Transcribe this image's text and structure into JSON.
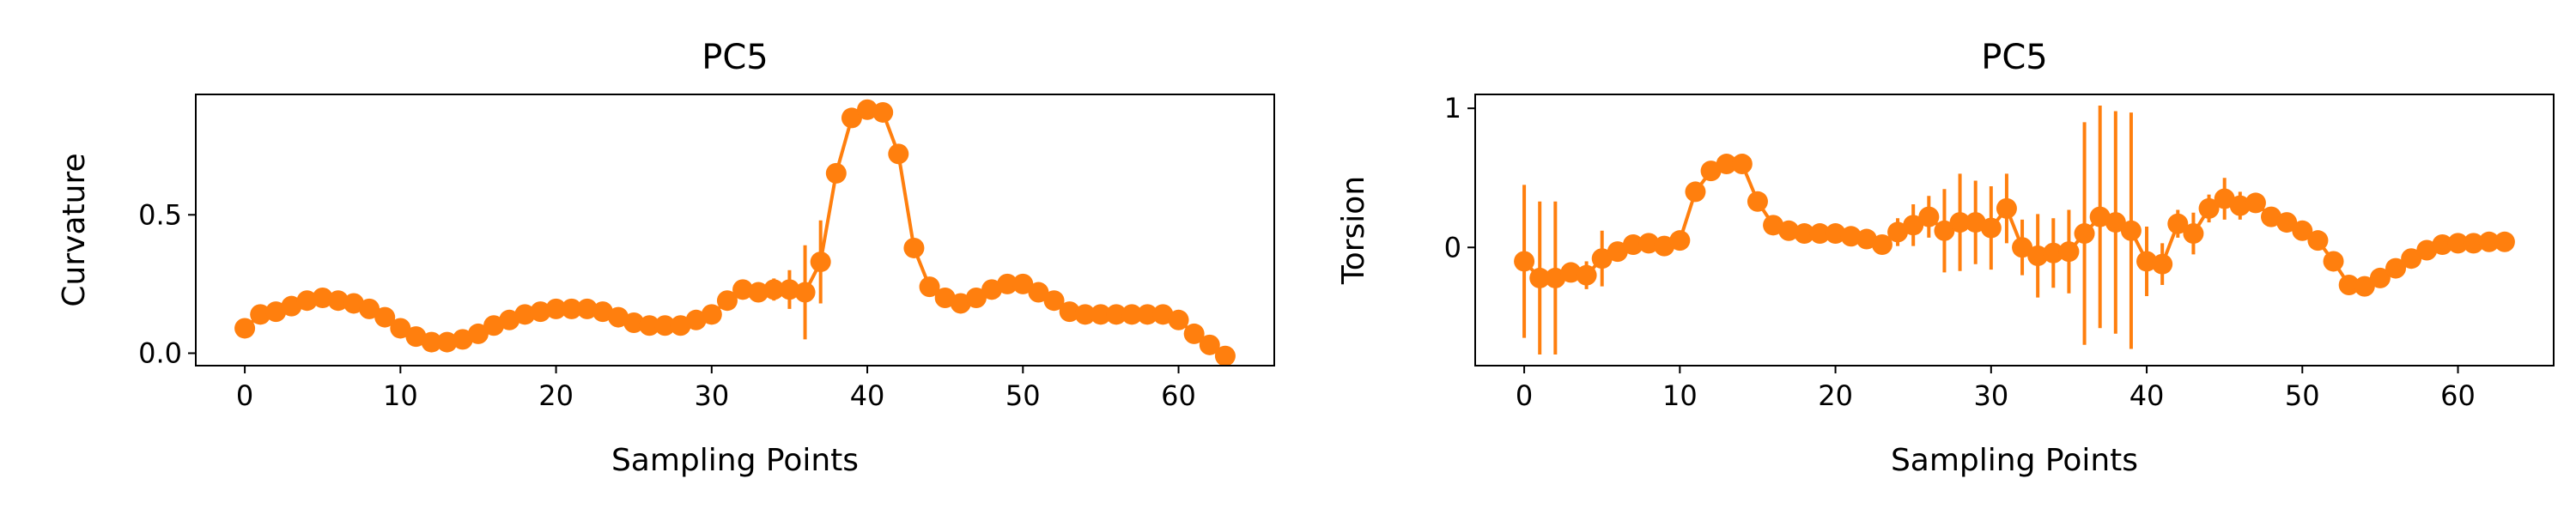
{
  "chart_data": [
    {
      "type": "line",
      "title": "PC5",
      "xlabel": "Sampling Points",
      "ylabel": "Curvature",
      "xlim": [
        -3.15,
        66.15
      ],
      "ylim": [
        -0.045,
        0.935
      ],
      "xticks": [
        0,
        10,
        20,
        30,
        40,
        50,
        60
      ],
      "xtick_labels": [
        "0",
        "10",
        "20",
        "30",
        "40",
        "50",
        "60"
      ],
      "yticks": [
        0.0,
        0.5
      ],
      "ytick_labels": [
        "0.0",
        "0.5"
      ],
      "grid": false,
      "legend": "none",
      "series": [
        {
          "color": "#ff7f0e",
          "marker": "circle",
          "x": [
            0,
            1,
            2,
            3,
            4,
            5,
            6,
            7,
            8,
            9,
            10,
            11,
            12,
            13,
            14,
            15,
            16,
            17,
            18,
            19,
            20,
            21,
            22,
            23,
            24,
            25,
            26,
            27,
            28,
            29,
            30,
            31,
            32,
            33,
            34,
            35,
            36,
            37,
            38,
            39,
            40,
            41,
            42,
            43,
            44,
            45,
            46,
            47,
            48,
            49,
            50,
            51,
            52,
            53,
            54,
            55,
            56,
            57,
            58,
            59,
            60,
            61,
            62,
            63
          ],
          "y": [
            0.09,
            0.14,
            0.15,
            0.17,
            0.19,
            0.2,
            0.19,
            0.18,
            0.16,
            0.13,
            0.09,
            0.06,
            0.04,
            0.04,
            0.05,
            0.07,
            0.1,
            0.12,
            0.14,
            0.15,
            0.16,
            0.16,
            0.16,
            0.15,
            0.13,
            0.11,
            0.1,
            0.1,
            0.1,
            0.12,
            0.14,
            0.19,
            0.23,
            0.22,
            0.23,
            0.23,
            0.22,
            0.33,
            0.65,
            0.85,
            0.88,
            0.87,
            0.72,
            0.38,
            0.24,
            0.2,
            0.18,
            0.2,
            0.23,
            0.25,
            0.25,
            0.22,
            0.19,
            0.15,
            0.14,
            0.14,
            0.14,
            0.14,
            0.14,
            0.14,
            0.12,
            0.07,
            0.03,
            -0.01
          ],
          "yerr": [
            0,
            0,
            0,
            0,
            0,
            0,
            0,
            0,
            0,
            0,
            0,
            0,
            0,
            0,
            0,
            0,
            0,
            0,
            0,
            0,
            0,
            0,
            0,
            0,
            0,
            0,
            0,
            0,
            0,
            0,
            0,
            0,
            0,
            0,
            0.04,
            0.07,
            0.17,
            0.15,
            0.03,
            0,
            0,
            0,
            0,
            0,
            0,
            0,
            0,
            0,
            0,
            0,
            0,
            0,
            0,
            0,
            0,
            0,
            0,
            0,
            0,
            0,
            0,
            0,
            0,
            0
          ]
        }
      ]
    },
    {
      "type": "line",
      "title": "PC5",
      "xlabel": "Sampling Points",
      "ylabel": "Torsion",
      "xlim": [
        -3.15,
        66.15
      ],
      "ylim": [
        -0.85,
        1.1
      ],
      "xticks": [
        0,
        10,
        20,
        30,
        40,
        50,
        60
      ],
      "xtick_labels": [
        "0",
        "10",
        "20",
        "30",
        "40",
        "50",
        "60"
      ],
      "yticks": [
        0,
        1
      ],
      "ytick_labels": [
        "0",
        "1"
      ],
      "grid": false,
      "legend": "none",
      "series": [
        {
          "color": "#ff7f0e",
          "marker": "circle",
          "x": [
            0,
            1,
            2,
            3,
            4,
            5,
            6,
            7,
            8,
            9,
            10,
            11,
            12,
            13,
            14,
            15,
            16,
            17,
            18,
            19,
            20,
            21,
            22,
            23,
            24,
            25,
            26,
            27,
            28,
            29,
            30,
            31,
            32,
            33,
            34,
            35,
            36,
            37,
            38,
            39,
            40,
            41,
            42,
            43,
            44,
            45,
            46,
            47,
            48,
            49,
            50,
            51,
            52,
            53,
            54,
            55,
            56,
            57,
            58,
            59,
            60,
            61,
            62,
            63
          ],
          "y": [
            -0.1,
            -0.22,
            -0.22,
            -0.18,
            -0.2,
            -0.08,
            -0.03,
            0.02,
            0.03,
            0.01,
            0.05,
            0.4,
            0.55,
            0.6,
            0.6,
            0.33,
            0.16,
            0.12,
            0.1,
            0.1,
            0.1,
            0.08,
            0.06,
            0.02,
            0.11,
            0.16,
            0.22,
            0.12,
            0.18,
            0.18,
            0.14,
            0.28,
            0.0,
            -0.06,
            -0.04,
            -0.03,
            0.1,
            0.22,
            0.18,
            0.12,
            -0.1,
            -0.12,
            0.17,
            0.1,
            0.28,
            0.35,
            0.3,
            0.32,
            0.22,
            0.18,
            0.12,
            0.05,
            -0.1,
            -0.27,
            -0.28,
            -0.22,
            -0.15,
            -0.08,
            -0.02,
            0.02,
            0.03,
            0.03,
            0.04,
            0.04
          ],
          "yerr": [
            0.55,
            0.55,
            0.55,
            0.07,
            0.1,
            0.2,
            0.05,
            0.05,
            0.05,
            0.05,
            0.05,
            0.05,
            0.05,
            0.05,
            0.05,
            0.05,
            0,
            0,
            0,
            0,
            0,
            0,
            0,
            0,
            0.1,
            0.15,
            0.15,
            0.3,
            0.35,
            0.3,
            0.3,
            0.25,
            0.2,
            0.3,
            0.25,
            0.3,
            0.8,
            0.8,
            0.8,
            0.85,
            0.25,
            0.15,
            0.1,
            0.15,
            0.1,
            0.15,
            0.1,
            0.05,
            0,
            0,
            0,
            0,
            0,
            0.05,
            0.05,
            0,
            0,
            0,
            0,
            0,
            0,
            0,
            0,
            0
          ]
        }
      ]
    }
  ]
}
